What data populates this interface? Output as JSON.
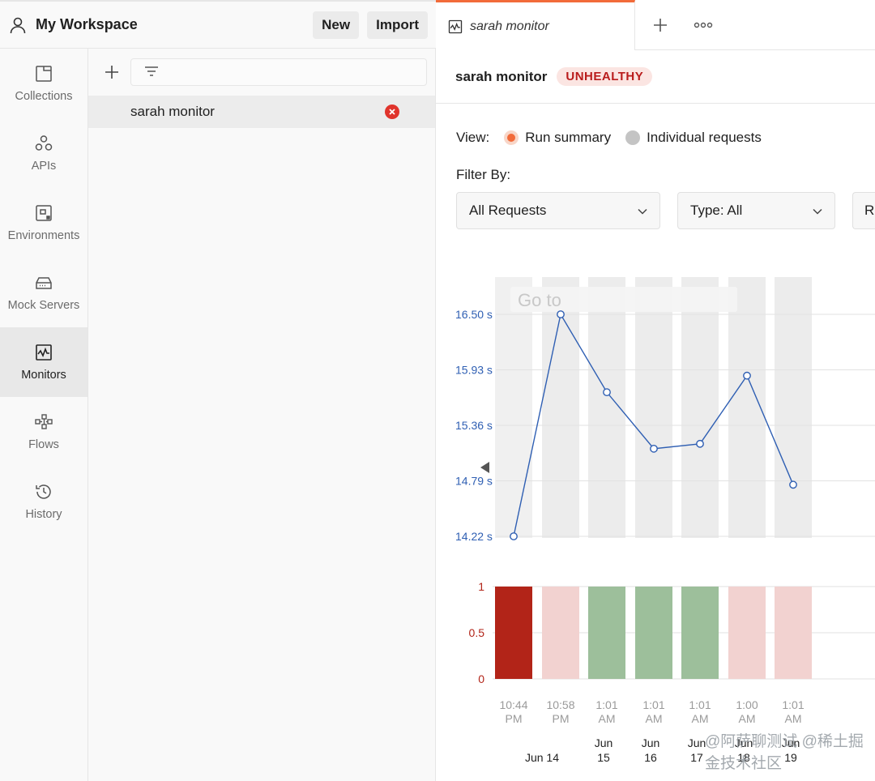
{
  "workspace": {
    "title": "My Workspace",
    "new_label": "New",
    "import_label": "Import"
  },
  "nav": {
    "items": [
      {
        "label": "Collections",
        "icon": "collections-icon"
      },
      {
        "label": "APIs",
        "icon": "apis-icon"
      },
      {
        "label": "Environments",
        "icon": "environments-icon"
      },
      {
        "label": "Mock Servers",
        "icon": "mock-servers-icon"
      },
      {
        "label": "Monitors",
        "icon": "monitors-icon",
        "active": true
      },
      {
        "label": "Flows",
        "icon": "flows-icon"
      },
      {
        "label": "History",
        "icon": "history-icon"
      }
    ]
  },
  "list": {
    "filter_placeholder": "",
    "items": [
      {
        "name": "sarah monitor",
        "status": "error"
      }
    ]
  },
  "tabs": [
    {
      "label": "sarah monitor",
      "active": true
    }
  ],
  "monitor": {
    "name": "sarah monitor",
    "status": "UNHEALTHY",
    "view_label": "View:",
    "view_options": [
      "Run summary",
      "Individual requests"
    ],
    "filter_label": "Filter By:",
    "filters": [
      "All Requests",
      "Type: All",
      "R"
    ]
  },
  "tooltip": {
    "goto": "Go to"
  },
  "colors": {
    "accent": "#f26b3a",
    "line": "#2f5fb3",
    "fail": "#b22418",
    "fail_light": "#f2d2d0",
    "pass": "#9dbf9b",
    "band": "#ececec",
    "axis_blue": "#2f5fb3",
    "axis_red": "#b22418"
  },
  "chart_data": [
    {
      "type": "line",
      "x": [
        "10:44 PM",
        "10:58 PM",
        "1:01 AM",
        "1:01 AM",
        "1:01 AM",
        "1:00 AM",
        "1:01 AM"
      ],
      "values": [
        14.22,
        16.5,
        15.7,
        15.12,
        15.17,
        15.87,
        14.75
      ],
      "ytick_labels": [
        "16.50 s",
        "15.93 s",
        "15.36 s",
        "14.79 s",
        "14.22 s"
      ],
      "yticks": [
        16.5,
        15.93,
        15.36,
        14.79,
        14.22
      ],
      "ylim": [
        14.22,
        16.5
      ]
    },
    {
      "type": "bar",
      "x": [
        "10:44 PM",
        "10:58 PM",
        "1:01 AM",
        "1:01 AM",
        "1:01 AM",
        "1:00 AM",
        "1:01 AM"
      ],
      "date_labels": [
        "Jun 14",
        "Jun 15",
        "Jun 16",
        "Jun 17",
        "Jun 18",
        "Jun 19"
      ],
      "values": [
        1,
        1,
        1,
        1,
        1,
        1,
        1
      ],
      "status": [
        "fail",
        "fail-faded",
        "pass",
        "pass",
        "pass",
        "fail-faded",
        "fail-faded"
      ],
      "ytick_labels": [
        "1",
        "0.5",
        "0"
      ],
      "ylim": [
        0,
        1
      ]
    }
  ],
  "watermark": "@阿萨聊测试 @稀土掘金技术社区"
}
